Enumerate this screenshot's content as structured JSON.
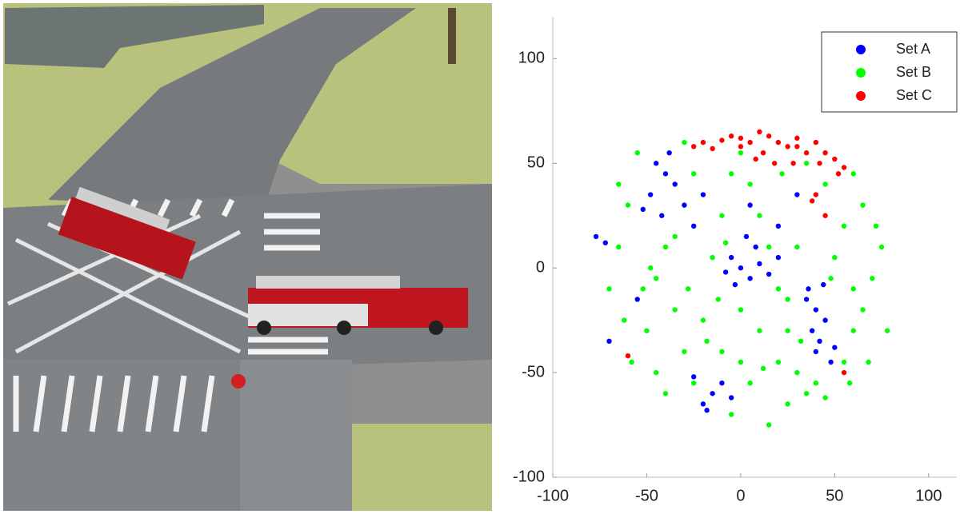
{
  "chart_data": {
    "type": "scatter",
    "xlim": [
      -100,
      115
    ],
    "ylim": [
      -100,
      120
    ],
    "xticks": [
      -100,
      -50,
      0,
      50,
      100
    ],
    "yticks": [
      -100,
      -50,
      0,
      50,
      100
    ],
    "grid": false,
    "legend": "upper-right",
    "series": [
      {
        "name": "Set A",
        "color": "#0000ff",
        "x": [
          -45,
          -40,
          -35,
          -48,
          -30,
          -42,
          -38,
          -25,
          -20,
          -52,
          -5,
          0,
          5,
          10,
          -3,
          8,
          15,
          3,
          -8,
          20,
          35,
          40,
          38,
          42,
          45,
          40,
          48,
          36,
          44,
          50,
          -15,
          -10,
          -20,
          -5,
          -25,
          -18,
          -77,
          -72,
          -70,
          -55,
          5,
          20,
          30
        ],
        "values": [
          50,
          45,
          40,
          35,
          30,
          25,
          55,
          20,
          35,
          28,
          5,
          0,
          -5,
          2,
          -8,
          10,
          -3,
          15,
          -2,
          5,
          -15,
          -20,
          -30,
          -35,
          -25,
          -40,
          -45,
          -10,
          -8,
          -38,
          -60,
          -55,
          -65,
          -62,
          -52,
          -68,
          15,
          12,
          -35,
          -15,
          30,
          20,
          35
        ]
      },
      {
        "name": "Set B",
        "color": "#00ff00",
        "x": [
          -55,
          -60,
          -65,
          -70,
          -62,
          -58,
          -50,
          -45,
          -40,
          -35,
          -30,
          -25,
          -20,
          -15,
          -10,
          -5,
          0,
          5,
          10,
          15,
          20,
          25,
          30,
          35,
          20,
          10,
          0,
          -10,
          5,
          -5,
          15,
          25,
          40,
          45,
          55,
          60,
          65,
          70,
          75,
          72,
          65,
          60,
          55,
          50,
          48,
          30,
          25,
          -25,
          -30,
          -35,
          -45,
          -52,
          -28,
          -12,
          12,
          35,
          45,
          -65,
          78,
          68,
          -20,
          -40,
          0,
          60,
          -8,
          22,
          -18,
          32,
          -48,
          58
        ],
        "values": [
          55,
          30,
          10,
          -10,
          -25,
          -45,
          -30,
          -5,
          10,
          -20,
          -40,
          -55,
          -25,
          5,
          25,
          45,
          55,
          40,
          25,
          10,
          -10,
          -30,
          -50,
          -60,
          -45,
          -30,
          -20,
          -40,
          -55,
          -70,
          -75,
          -65,
          -55,
          -62,
          -45,
          -30,
          -20,
          -5,
          10,
          20,
          30,
          45,
          20,
          5,
          -5,
          10,
          -15,
          45,
          60,
          15,
          -50,
          -10,
          -10,
          -15,
          -48,
          50,
          40,
          40,
          -30,
          -45,
          60,
          -60,
          -45,
          -10,
          12,
          45,
          -35,
          -35,
          0,
          -55
        ]
      },
      {
        "name": "Set C",
        "color": "#ff0000",
        "x": [
          -25,
          -20,
          -15,
          -10,
          -5,
          0,
          5,
          10,
          15,
          20,
          12,
          25,
          30,
          35,
          40,
          45,
          50,
          55,
          52,
          42,
          8,
          18,
          40,
          38,
          45,
          30,
          28,
          -60,
          55,
          0
        ],
        "values": [
          58,
          60,
          57,
          61,
          63,
          62,
          60,
          65,
          63,
          60,
          55,
          58,
          62,
          55,
          60,
          55,
          52,
          48,
          45,
          50,
          52,
          50,
          35,
          32,
          25,
          58,
          50,
          -42,
          -50,
          58
        ]
      }
    ]
  }
}
